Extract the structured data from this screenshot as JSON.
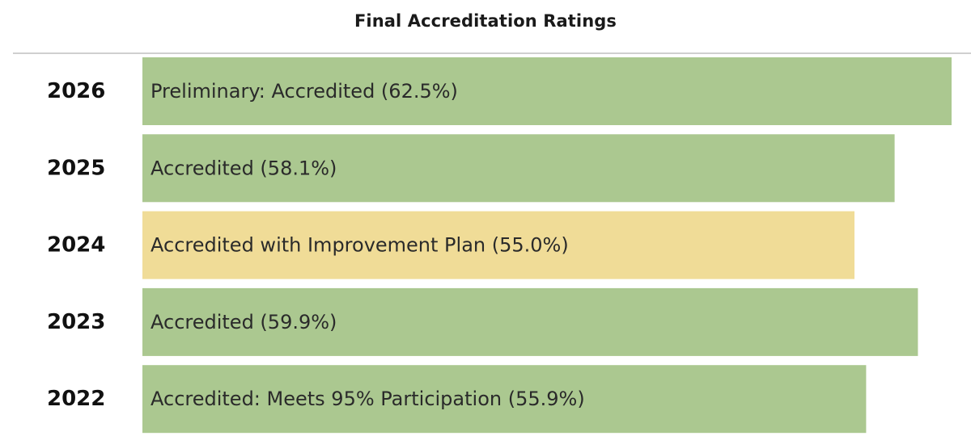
{
  "chart_data": {
    "type": "bar",
    "orientation": "horizontal",
    "title": "Final Accreditation Ratings",
    "xlabel": "",
    "ylabel": "",
    "xlim": [
      0,
      63.5
    ],
    "grid": false,
    "categories": [
      "2026",
      "2025",
      "2024",
      "2023",
      "2022"
    ],
    "values": [
      62.5,
      58.1,
      55.0,
      59.9,
      55.9
    ],
    "bar_labels": [
      "Preliminary: Accredited (62.5%)",
      "Accredited (58.1%)",
      "Accredited with Improvement Plan (55.0%)",
      "Accredited (59.9%)",
      "Accredited: Meets 95% Participation (55.9%)"
    ],
    "bar_colors": [
      "#abc890",
      "#abc890",
      "#f0dc97",
      "#abc890",
      "#abc890"
    ]
  },
  "colors": {
    "accredited": "#abc890",
    "improvement_plan": "#f0dc97",
    "header_rule": "#cfcfcf"
  }
}
